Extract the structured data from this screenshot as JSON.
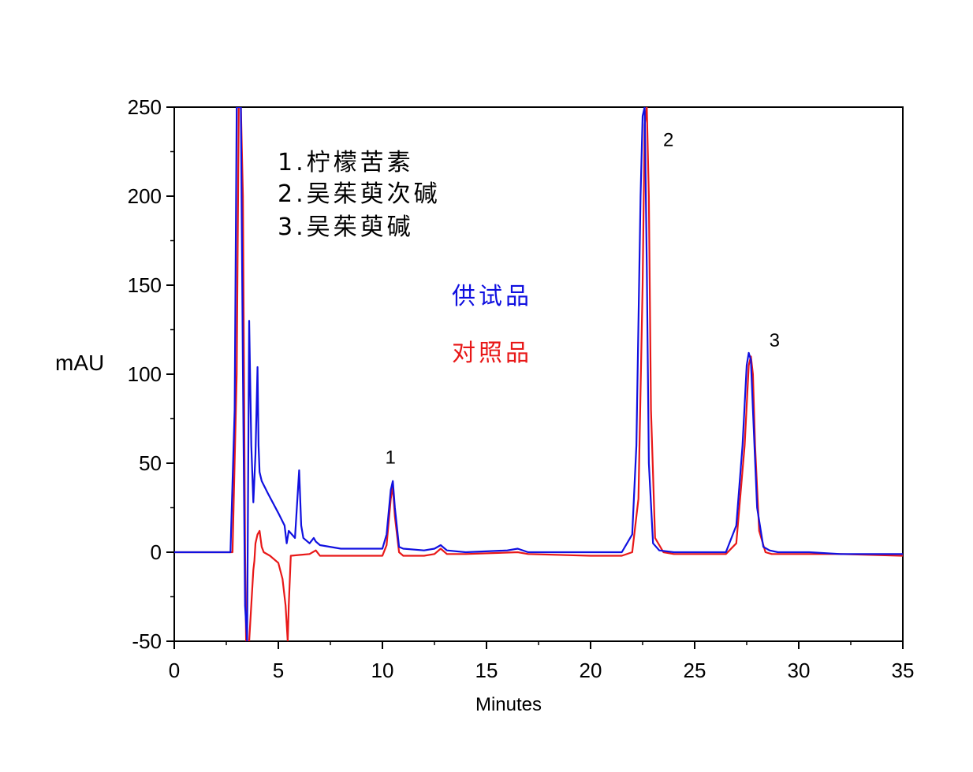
{
  "chart_data": {
    "type": "line",
    "xlabel": "Minutes",
    "ylabel": "mAU",
    "xlim": [
      0,
      35
    ],
    "ylim": [
      -50,
      250
    ],
    "xticks": [
      "0",
      "5",
      "10",
      "15",
      "20",
      "25",
      "30",
      "35"
    ],
    "yticks": [
      "250",
      "200",
      "150",
      "100",
      "50",
      "0",
      "-50"
    ],
    "compounds": [
      "1.柠檬苦素",
      "2.吴茱萸次碱",
      "3.吴茱萸碱"
    ],
    "peak_labels": [
      {
        "text": "1",
        "x": 10.5,
        "y": 40
      },
      {
        "text": "2",
        "x": 22.6,
        "y": 245
      },
      {
        "text": "3",
        "x": 27.7,
        "y": 112
      }
    ],
    "colors": {
      "sample": "#1010e0",
      "reference": "#e81818"
    },
    "series": [
      {
        "name": "供试品",
        "color": "#1010e0",
        "x": [
          0,
          1,
          2,
          2.7,
          2.9,
          3.0,
          3.1,
          3.2,
          3.3,
          3.4,
          3.5,
          3.55,
          3.6,
          3.7,
          3.8,
          3.9,
          4.0,
          4.05,
          4.1,
          4.2,
          4.5,
          5.0,
          5.3,
          5.4,
          5.5,
          5.8,
          6.0,
          6.1,
          6.2,
          6.5,
          6.7,
          6.8,
          7.0,
          8.0,
          9.0,
          10.0,
          10.2,
          10.4,
          10.5,
          10.6,
          10.8,
          11.0,
          12.0,
          12.5,
          12.8,
          13.1,
          14,
          16,
          16.5,
          17,
          20,
          21.5,
          22.0,
          22.2,
          22.4,
          22.5,
          22.6,
          22.7,
          22.8,
          23.0,
          23.3,
          24,
          26.5,
          27.0,
          27.3,
          27.5,
          27.6,
          27.7,
          27.8,
          28.0,
          28.3,
          28.6,
          29,
          30.5,
          32,
          35
        ],
        "y": [
          0,
          0,
          0,
          0,
          80,
          250,
          250,
          250,
          100,
          -30,
          -50,
          40,
          130,
          60,
          28,
          55,
          104,
          60,
          45,
          40,
          33,
          22,
          15,
          5,
          12,
          8,
          46,
          15,
          8,
          5,
          8,
          6,
          4,
          2,
          2,
          2,
          10,
          35,
          40,
          25,
          3,
          2,
          1,
          2,
          4,
          1,
          0,
          1,
          2,
          0,
          0,
          0,
          10,
          60,
          200,
          245,
          250,
          160,
          50,
          5,
          1,
          0,
          0,
          15,
          60,
          105,
          112,
          108,
          80,
          25,
          3,
          1,
          0,
          0,
          -1,
          -1
        ]
      },
      {
        "name": "对照品",
        "color": "#e81818",
        "x": [
          0,
          1,
          2,
          2.8,
          3.0,
          3.1,
          3.2,
          3.3,
          3.4,
          3.45,
          3.5,
          3.6,
          3.8,
          3.85,
          3.9,
          4.0,
          4.1,
          4.2,
          4.3,
          4.6,
          5.0,
          5.2,
          5.35,
          5.45,
          5.5,
          5.6,
          6.5,
          6.8,
          7.0,
          8,
          10.0,
          10.2,
          10.4,
          10.5,
          10.6,
          10.8,
          11.0,
          12,
          12.5,
          12.8,
          13.1,
          14,
          16.5,
          17,
          20,
          21.5,
          22.0,
          22.3,
          22.5,
          22.6,
          22.7,
          22.8,
          22.9,
          23.1,
          23.5,
          24,
          26.5,
          27.0,
          27.4,
          27.6,
          27.7,
          27.8,
          27.9,
          28.1,
          28.4,
          28.7,
          29,
          32,
          35
        ],
        "y": [
          0,
          0,
          0,
          0,
          100,
          250,
          250,
          200,
          0,
          -50,
          -50,
          -50,
          -10,
          -5,
          5,
          10,
          12,
          3,
          0,
          -2,
          -6,
          -15,
          -30,
          -50,
          -30,
          -2,
          -1,
          1,
          -2,
          -2,
          -2,
          4,
          30,
          37,
          20,
          0,
          -2,
          -2,
          -1,
          2,
          -1,
          -1,
          0,
          -1,
          -2,
          -2,
          0,
          30,
          150,
          240,
          250,
          200,
          80,
          8,
          0,
          -1,
          -1,
          5,
          60,
          105,
          110,
          100,
          60,
          12,
          0,
          -1,
          -1,
          -1,
          -2
        ]
      }
    ]
  }
}
